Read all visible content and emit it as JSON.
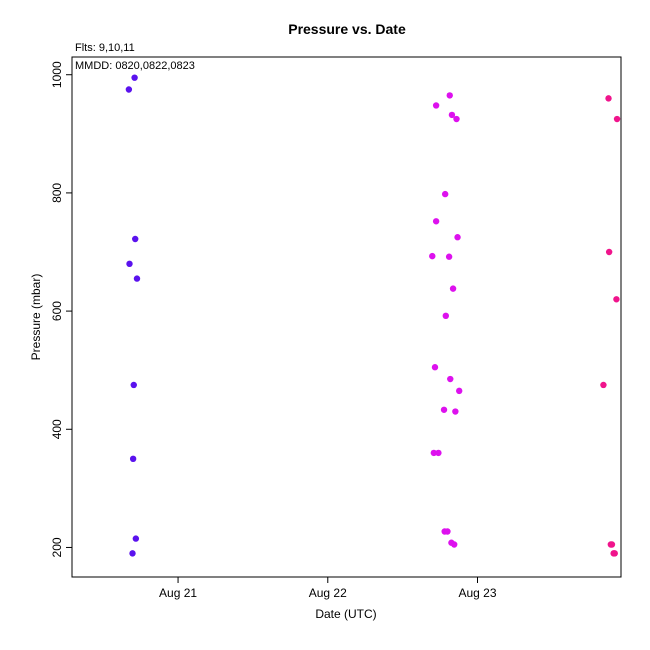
{
  "chart_data": {
    "type": "scatter",
    "title": "Pressure  vs. Date",
    "note_flts": "Flts: 9,10,11",
    "note_mmdd": "MMDD: 0820,0822,0823",
    "xlabel": "Date (UTC)",
    "ylabel": "Pressure (mbar)",
    "xlim": [
      "2024-08-20 07:00",
      "2024-08-23 23:00"
    ],
    "ylim": [
      1030,
      150
    ],
    "y_inverted": true,
    "x_ticks": [
      {
        "value": "2024-08-21 00:00",
        "label": "Aug 21"
      },
      {
        "value": "2024-08-22 00:00",
        "label": "Aug 22"
      },
      {
        "value": "2024-08-23 00:00",
        "label": "Aug 23"
      }
    ],
    "y_ticks": [
      200,
      400,
      600,
      800,
      1000
    ],
    "grid": false,
    "series": [
      {
        "color": "#5a12ee",
        "points": [
          {
            "x": "2024-08-20 16:42",
            "y": 190
          },
          {
            "x": "2024-08-20 17:14",
            "y": 215
          },
          {
            "x": "2024-08-20 16:48",
            "y": 350
          },
          {
            "x": "2024-08-20 16:54",
            "y": 475
          },
          {
            "x": "2024-08-20 17:25",
            "y": 655
          },
          {
            "x": "2024-08-20 16:13",
            "y": 680
          },
          {
            "x": "2024-08-20 17:08",
            "y": 722
          },
          {
            "x": "2024-08-20 16:07",
            "y": 975
          },
          {
            "x": "2024-08-20 17:02",
            "y": 995
          }
        ]
      },
      {
        "color": "#dd11ee",
        "points": [
          {
            "x": "2024-08-22 19:49",
            "y": 208
          },
          {
            "x": "2024-08-22 20:16",
            "y": 205
          },
          {
            "x": "2024-08-22 18:44",
            "y": 227
          },
          {
            "x": "2024-08-22 19:11",
            "y": 227
          },
          {
            "x": "2024-08-22 17:00",
            "y": 360
          },
          {
            "x": "2024-08-22 17:44",
            "y": 360
          },
          {
            "x": "2024-08-22 20:27",
            "y": 430
          },
          {
            "x": "2024-08-22 18:38",
            "y": 433
          },
          {
            "x": "2024-08-22 21:04",
            "y": 465
          },
          {
            "x": "2024-08-22 19:38",
            "y": 485
          },
          {
            "x": "2024-08-22 17:11",
            "y": 505
          },
          {
            "x": "2024-08-22 18:55",
            "y": 592
          },
          {
            "x": "2024-08-22 20:05",
            "y": 638
          },
          {
            "x": "2024-08-22 16:45",
            "y": 693
          },
          {
            "x": "2024-08-22 19:27",
            "y": 692
          },
          {
            "x": "2024-08-22 20:48",
            "y": 725
          },
          {
            "x": "2024-08-22 17:22",
            "y": 752
          },
          {
            "x": "2024-08-22 18:49",
            "y": 798
          },
          {
            "x": "2024-08-22 20:38",
            "y": 925
          },
          {
            "x": "2024-08-22 19:54",
            "y": 932
          },
          {
            "x": "2024-08-22 17:22",
            "y": 948
          },
          {
            "x": "2024-08-22 19:33",
            "y": 965
          }
        ]
      },
      {
        "color": "#f0148c",
        "points": [
          {
            "x": "2024-08-23 21:49",
            "y": 190
          },
          {
            "x": "2024-08-23 22:00",
            "y": 190
          },
          {
            "x": "2024-08-23 21:33",
            "y": 205
          },
          {
            "x": "2024-08-23 21:22",
            "y": 205
          },
          {
            "x": "2024-08-23 20:11",
            "y": 475
          },
          {
            "x": "2024-08-23 22:16",
            "y": 620
          },
          {
            "x": "2024-08-23 21:06",
            "y": 700
          },
          {
            "x": "2024-08-23 22:22",
            "y": 925
          },
          {
            "x": "2024-08-23 21:00",
            "y": 960
          }
        ]
      }
    ]
  }
}
